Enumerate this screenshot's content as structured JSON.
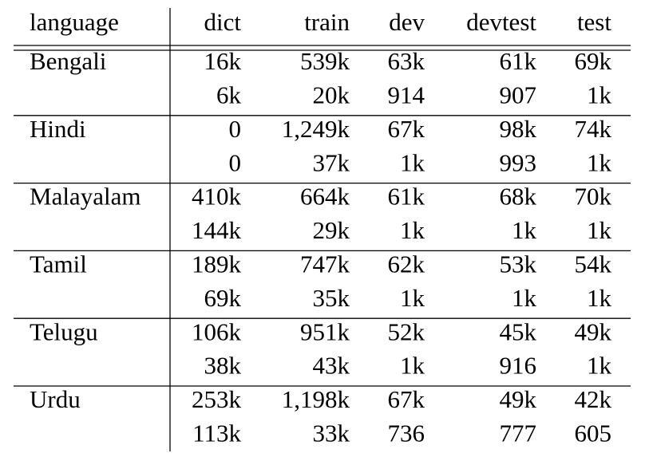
{
  "table": {
    "header": [
      "language",
      "dict",
      "train",
      "dev",
      "devtest",
      "test"
    ],
    "groups": [
      {
        "language": "Bengali",
        "rows": [
          [
            "16k",
            "539k",
            "63k",
            "61k",
            "69k"
          ],
          [
            "6k",
            "20k",
            "914",
            "907",
            "1k"
          ]
        ]
      },
      {
        "language": "Hindi",
        "rows": [
          [
            "0",
            "1,249k",
            "67k",
            "98k",
            "74k"
          ],
          [
            "0",
            "37k",
            "1k",
            "993",
            "1k"
          ]
        ]
      },
      {
        "language": "Malayalam",
        "rows": [
          [
            "410k",
            "664k",
            "61k",
            "68k",
            "70k"
          ],
          [
            "144k",
            "29k",
            "1k",
            "1k",
            "1k"
          ]
        ]
      },
      {
        "language": "Tamil",
        "rows": [
          [
            "189k",
            "747k",
            "62k",
            "53k",
            "54k"
          ],
          [
            "69k",
            "35k",
            "1k",
            "1k",
            "1k"
          ]
        ]
      },
      {
        "language": "Telugu",
        "rows": [
          [
            "106k",
            "951k",
            "52k",
            "45k",
            "49k"
          ],
          [
            "38k",
            "43k",
            "1k",
            "916",
            "1k"
          ]
        ]
      },
      {
        "language": "Urdu",
        "rows": [
          [
            "253k",
            "1,198k",
            "67k",
            "49k",
            "42k"
          ],
          [
            "113k",
            "33k",
            "736",
            "777",
            "605"
          ]
        ]
      }
    ]
  }
}
